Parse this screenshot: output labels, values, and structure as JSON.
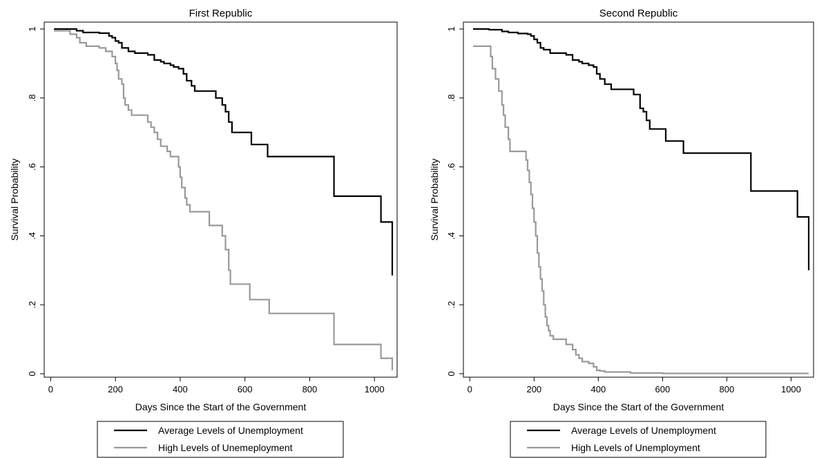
{
  "chart_data": [
    {
      "type": "line",
      "title": "First Republic",
      "xlabel": "Days Since the Start of the Government",
      "ylabel": "Survival Probability",
      "xlim": [
        -20,
        1070
      ],
      "ylim": [
        -0.01,
        1.02
      ],
      "xticks": [
        0,
        200,
        400,
        600,
        800,
        1000
      ],
      "xtick_labels": [
        "0",
        "200",
        "400",
        "600",
        "800",
        "1000"
      ],
      "yticks": [
        0,
        0.2,
        0.4,
        0.6,
        0.8,
        1
      ],
      "ytick_labels": [
        "0",
        ".2",
        ".4",
        ".6",
        ".8",
        "1"
      ],
      "grid": false,
      "legend_position": "bottom",
      "series": [
        {
          "name": "Average Levels of Unemployment",
          "color": "#000000",
          "step": true,
          "points": [
            [
              10,
              1.0
            ],
            [
              60,
              1.0
            ],
            [
              80,
              0.995
            ],
            [
              100,
              0.99
            ],
            [
              150,
              0.988
            ],
            [
              180,
              0.98
            ],
            [
              190,
              0.975
            ],
            [
              200,
              0.965
            ],
            [
              210,
              0.96
            ],
            [
              220,
              0.945
            ],
            [
              240,
              0.935
            ],
            [
              260,
              0.93
            ],
            [
              300,
              0.925
            ],
            [
              320,
              0.91
            ],
            [
              340,
              0.905
            ],
            [
              350,
              0.9
            ],
            [
              370,
              0.895
            ],
            [
              380,
              0.89
            ],
            [
              395,
              0.885
            ],
            [
              410,
              0.87
            ],
            [
              420,
              0.85
            ],
            [
              435,
              0.835
            ],
            [
              445,
              0.82
            ],
            [
              510,
              0.8
            ],
            [
              530,
              0.78
            ],
            [
              540,
              0.76
            ],
            [
              550,
              0.73
            ],
            [
              560,
              0.7
            ],
            [
              620,
              0.665
            ],
            [
              670,
              0.63
            ],
            [
              875,
              0.515
            ],
            [
              1020,
              0.44
            ],
            [
              1055,
              0.285
            ]
          ]
        },
        {
          "name": "High Levels of Unemeployment",
          "color": "#999999",
          "step": true,
          "points": [
            [
              10,
              0.995
            ],
            [
              60,
              0.985
            ],
            [
              80,
              0.975
            ],
            [
              90,
              0.96
            ],
            [
              110,
              0.95
            ],
            [
              150,
              0.945
            ],
            [
              170,
              0.935
            ],
            [
              190,
              0.92
            ],
            [
              200,
              0.9
            ],
            [
              205,
              0.88
            ],
            [
              210,
              0.855
            ],
            [
              220,
              0.84
            ],
            [
              225,
              0.8
            ],
            [
              230,
              0.78
            ],
            [
              240,
              0.765
            ],
            [
              250,
              0.75
            ],
            [
              300,
              0.73
            ],
            [
              310,
              0.715
            ],
            [
              320,
              0.7
            ],
            [
              330,
              0.68
            ],
            [
              340,
              0.66
            ],
            [
              360,
              0.645
            ],
            [
              370,
              0.63
            ],
            [
              395,
              0.6
            ],
            [
              400,
              0.57
            ],
            [
              405,
              0.54
            ],
            [
              415,
              0.51
            ],
            [
              420,
              0.49
            ],
            [
              430,
              0.47
            ],
            [
              490,
              0.43
            ],
            [
              530,
              0.4
            ],
            [
              540,
              0.36
            ],
            [
              550,
              0.3
            ],
            [
              555,
              0.26
            ],
            [
              615,
              0.215
            ],
            [
              675,
              0.175
            ],
            [
              875,
              0.085
            ],
            [
              1020,
              0.045
            ],
            [
              1055,
              0.01
            ]
          ]
        }
      ]
    },
    {
      "type": "line",
      "title": "Second Republic",
      "xlabel": "Days Since the Start of the Government",
      "ylabel": "Survival Probability",
      "xlim": [
        -20,
        1070
      ],
      "ylim": [
        -0.01,
        1.02
      ],
      "xticks": [
        0,
        200,
        400,
        600,
        800,
        1000
      ],
      "xtick_labels": [
        "0",
        "200",
        "400",
        "600",
        "800",
        "1000"
      ],
      "yticks": [
        0,
        0.2,
        0.4,
        0.6,
        0.8,
        1
      ],
      "ytick_labels": [
        "0",
        ".2",
        ".4",
        ".6",
        ".8",
        "1"
      ],
      "grid": false,
      "legend_position": "bottom",
      "series": [
        {
          "name": "Average Levels of Unemployment",
          "color": "#000000",
          "step": true,
          "points": [
            [
              10,
              1.0
            ],
            [
              60,
              0.998
            ],
            [
              100,
              0.993
            ],
            [
              120,
              0.99
            ],
            [
              150,
              0.987
            ],
            [
              180,
              0.985
            ],
            [
              190,
              0.98
            ],
            [
              200,
              0.97
            ],
            [
              210,
              0.96
            ],
            [
              220,
              0.945
            ],
            [
              230,
              0.94
            ],
            [
              250,
              0.93
            ],
            [
              300,
              0.925
            ],
            [
              320,
              0.91
            ],
            [
              340,
              0.905
            ],
            [
              350,
              0.9
            ],
            [
              370,
              0.895
            ],
            [
              385,
              0.89
            ],
            [
              395,
              0.87
            ],
            [
              405,
              0.855
            ],
            [
              420,
              0.84
            ],
            [
              440,
              0.825
            ],
            [
              510,
              0.81
            ],
            [
              530,
              0.77
            ],
            [
              540,
              0.76
            ],
            [
              550,
              0.735
            ],
            [
              560,
              0.71
            ],
            [
              610,
              0.675
            ],
            [
              665,
              0.64
            ],
            [
              875,
              0.53
            ],
            [
              1020,
              0.455
            ],
            [
              1055,
              0.3
            ]
          ]
        },
        {
          "name": "High Levels of Unemployment",
          "color": "#999999",
          "step": true,
          "points": [
            [
              10,
              0.95
            ],
            [
              60,
              0.95
            ],
            [
              65,
              0.92
            ],
            [
              70,
              0.885
            ],
            [
              80,
              0.855
            ],
            [
              90,
              0.82
            ],
            [
              100,
              0.78
            ],
            [
              105,
              0.75
            ],
            [
              110,
              0.715
            ],
            [
              120,
              0.68
            ],
            [
              125,
              0.645
            ],
            [
              175,
              0.62
            ],
            [
              180,
              0.59
            ],
            [
              185,
              0.555
            ],
            [
              190,
              0.52
            ],
            [
              195,
              0.48
            ],
            [
              200,
              0.44
            ],
            [
              205,
              0.4
            ],
            [
              210,
              0.35
            ],
            [
              215,
              0.31
            ],
            [
              220,
              0.275
            ],
            [
              225,
              0.24
            ],
            [
              230,
              0.2
            ],
            [
              235,
              0.165
            ],
            [
              240,
              0.14
            ],
            [
              245,
              0.125
            ],
            [
              250,
              0.11
            ],
            [
              260,
              0.1
            ],
            [
              300,
              0.085
            ],
            [
              320,
              0.07
            ],
            [
              330,
              0.055
            ],
            [
              340,
              0.045
            ],
            [
              350,
              0.035
            ],
            [
              370,
              0.03
            ],
            [
              385,
              0.02
            ],
            [
              395,
              0.01
            ],
            [
              405,
              0.008
            ],
            [
              420,
              0.005
            ],
            [
              500,
              0.002
            ],
            [
              600,
              0.001
            ],
            [
              1055,
              0.001
            ]
          ]
        }
      ]
    }
  ]
}
